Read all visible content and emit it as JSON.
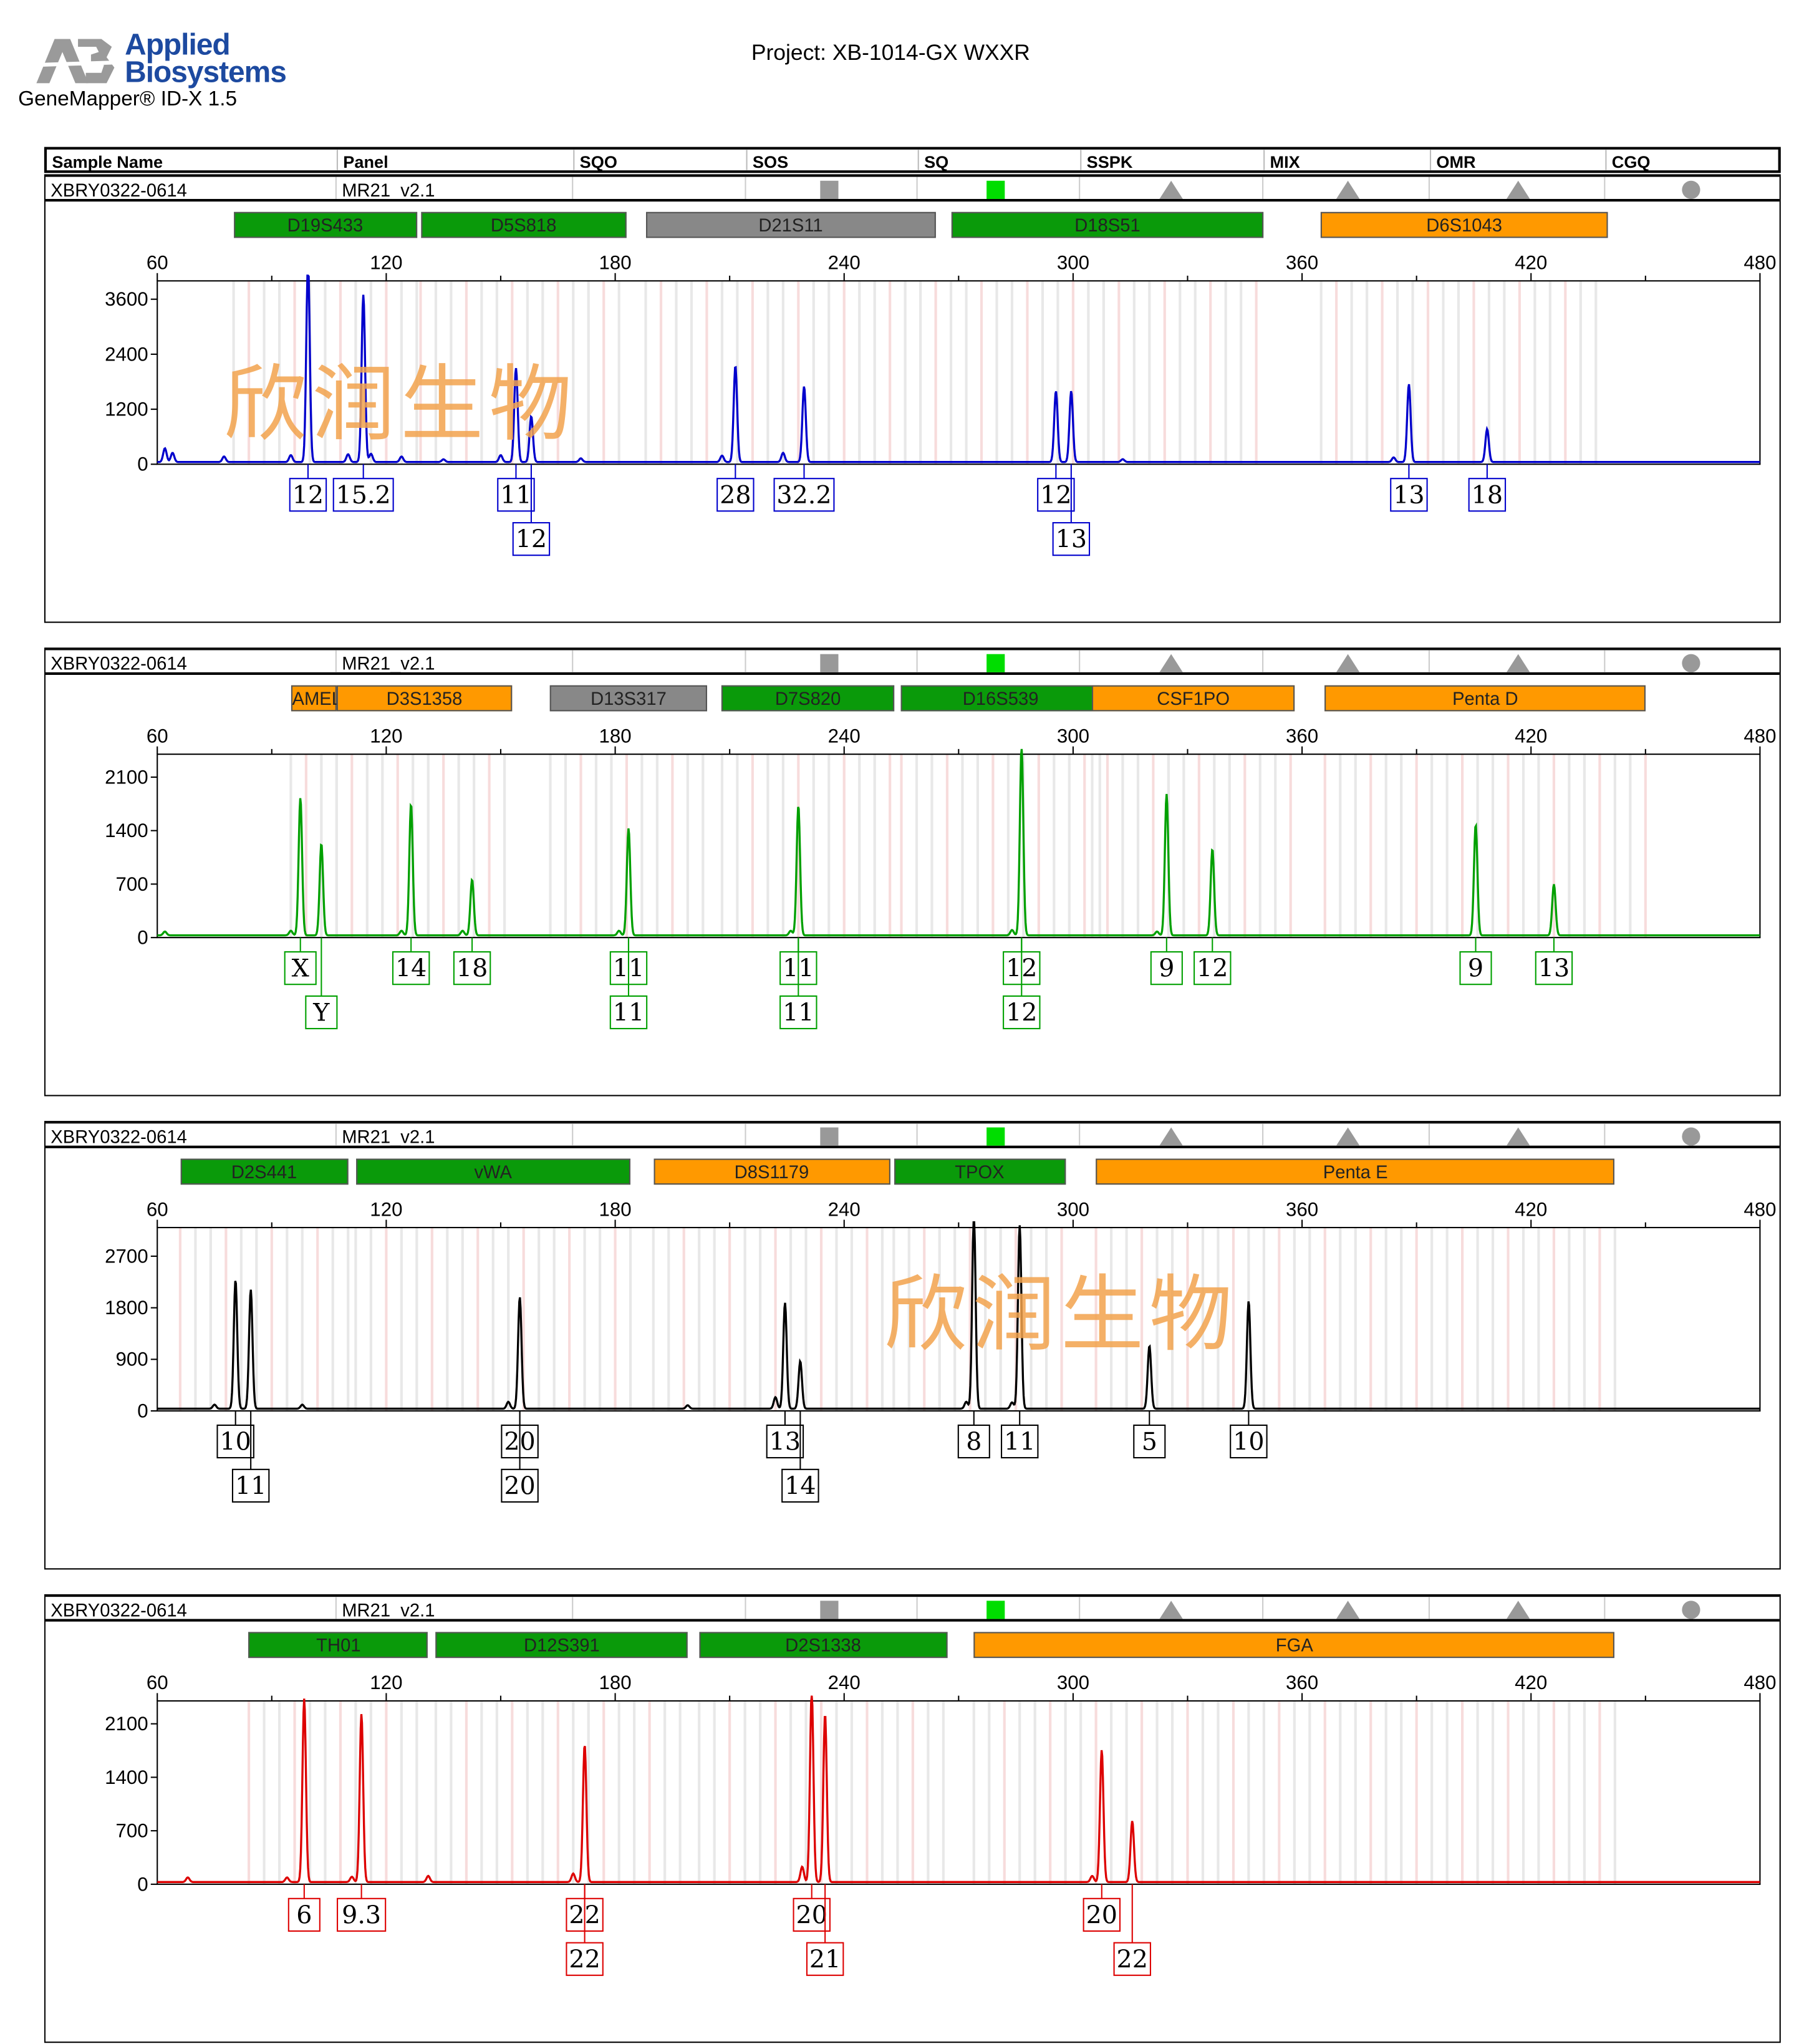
{
  "header": {
    "brand_line1": "Applied",
    "brand_line2": "Biosystems",
    "app_version": "GeneMapper® ID-X  1.5",
    "project": "Project: XB-1014-GX WXXR"
  },
  "columns": [
    "Sample Name",
    "Panel",
    "SQO",
    "SOS",
    "SQ",
    "SSPK",
    "MIX",
    "OMR",
    "CGQ"
  ],
  "watermark": "欣润生物",
  "colors": {
    "blue": "#0000cc",
    "green": "#00a000",
    "black": "#000000",
    "red": "#dd0000",
    "loc_green": "#0a9a0a",
    "loc_orange": "#ff9900",
    "loc_gray": "#888888"
  },
  "quality_icons": [
    "gray-square",
    "green-square",
    "gray-triangle",
    "gray-triangle",
    "gray-triangle",
    "gray-circle"
  ],
  "chart_data": [
    {
      "type": "line",
      "dye": "blue",
      "color": "#0000cc",
      "sample_name": "XBRY0322-0614",
      "panel": "MR21_v2.1",
      "xlim": [
        60,
        480
      ],
      "xticks": [
        60,
        120,
        180,
        240,
        300,
        360,
        420,
        480
      ],
      "ylim": [
        0,
        4000
      ],
      "yticks": [
        0,
        1200,
        2400,
        3600
      ],
      "loci": [
        {
          "name": "D19S433",
          "start": 80,
          "end": 128,
          "color": "green"
        },
        {
          "name": "D5S818",
          "start": 129,
          "end": 183,
          "color": "green"
        },
        {
          "name": "D21S11",
          "start": 188,
          "end": 264,
          "color": "gray"
        },
        {
          "name": "D18S51",
          "start": 268,
          "end": 350,
          "color": "green"
        },
        {
          "name": "D6S1043",
          "start": 365,
          "end": 440,
          "color": "orange"
        }
      ],
      "peaks": [
        {
          "x": 99.5,
          "y": 4400,
          "allele": "12",
          "row": 0
        },
        {
          "x": 114,
          "y": 3650,
          "allele": "15.2",
          "row": 0
        },
        {
          "x": 154,
          "y": 2050,
          "allele": "11",
          "row": 0
        },
        {
          "x": 158,
          "y": 1000,
          "allele": "12",
          "row": 1
        },
        {
          "x": 211.5,
          "y": 2100,
          "allele": "28",
          "row": 0
        },
        {
          "x": 229.5,
          "y": 1650,
          "allele": "32.2",
          "row": 0
        },
        {
          "x": 295.5,
          "y": 1550,
          "allele": "12",
          "row": 0
        },
        {
          "x": 299.5,
          "y": 1550,
          "allele": "13",
          "row": 1
        },
        {
          "x": 388,
          "y": 1700,
          "allele": "13",
          "row": 0
        },
        {
          "x": 408.5,
          "y": 720,
          "allele": "18",
          "row": 0
        }
      ],
      "small_peaks": [
        [
          62,
          300
        ],
        [
          64,
          200
        ],
        [
          77.5,
          120
        ],
        [
          95,
          150
        ],
        [
          110,
          170
        ],
        [
          116,
          180
        ],
        [
          124,
          120
        ],
        [
          135,
          60
        ],
        [
          150,
          150
        ],
        [
          171,
          80
        ],
        [
          208,
          140
        ],
        [
          224,
          200
        ],
        [
          313,
          60
        ],
        [
          384,
          100
        ]
      ]
    },
    {
      "type": "line",
      "dye": "green",
      "color": "#00a000",
      "sample_name": "XBRY0322-0614",
      "panel": "MR21_v2.1",
      "xlim": [
        60,
        480
      ],
      "xticks": [
        60,
        120,
        180,
        240,
        300,
        360,
        420,
        480
      ],
      "ylim": [
        0,
        2400
      ],
      "yticks": [
        0,
        700,
        1400,
        2100
      ],
      "loci": [
        {
          "name": "AMEL",
          "start": 95,
          "end": 107,
          "color": "orange"
        },
        {
          "name": "D3S1358",
          "start": 107,
          "end": 153,
          "color": "orange"
        },
        {
          "name": "D13S317",
          "start": 163,
          "end": 204,
          "color": "gray"
        },
        {
          "name": "D7S820",
          "start": 208,
          "end": 253,
          "color": "green"
        },
        {
          "name": "D16S539",
          "start": 255,
          "end": 307,
          "color": "green"
        },
        {
          "name": "CSF1PO",
          "start": 305,
          "end": 358,
          "color": "orange"
        },
        {
          "name": "Penta D",
          "start": 366,
          "end": 450,
          "color": "orange"
        }
      ],
      "peaks": [
        {
          "x": 97.5,
          "y": 1800,
          "allele": "X",
          "row": 0
        },
        {
          "x": 103,
          "y": 1200,
          "allele": "Y",
          "row": 1
        },
        {
          "x": 126.5,
          "y": 1720,
          "allele": "14",
          "row": 0
        },
        {
          "x": 142.5,
          "y": 730,
          "allele": "18",
          "row": 0
        },
        {
          "x": 183.5,
          "y": 1400,
          "allele": "11",
          "row": 0
        },
        {
          "x": 183.5,
          "y": 1400,
          "allele": "11",
          "row": 1
        },
        {
          "x": 228,
          "y": 1700,
          "allele": "11",
          "row": 0
        },
        {
          "x": 228,
          "y": 1700,
          "allele": "11",
          "row": 1
        },
        {
          "x": 286.5,
          "y": 2480,
          "allele": "12",
          "row": 0
        },
        {
          "x": 286.5,
          "y": 2480,
          "allele": "12",
          "row": 1
        },
        {
          "x": 324.5,
          "y": 1850,
          "allele": "9",
          "row": 0
        },
        {
          "x": 336.5,
          "y": 1130,
          "allele": "12",
          "row": 0
        },
        {
          "x": 405.5,
          "y": 1450,
          "allele": "9",
          "row": 0
        },
        {
          "x": 426,
          "y": 670,
          "allele": "13",
          "row": 0
        }
      ],
      "small_peaks": [
        [
          62,
          50
        ],
        [
          95,
          60
        ],
        [
          124,
          60
        ],
        [
          140,
          60
        ],
        [
          181,
          60
        ],
        [
          226,
          60
        ],
        [
          284,
          70
        ],
        [
          322,
          50
        ]
      ]
    },
    {
      "type": "line",
      "dye": "black",
      "color": "#000000",
      "sample_name": "XBRY0322-0614",
      "panel": "MR21_v2.1",
      "xlim": [
        60,
        480
      ],
      "xticks": [
        60,
        120,
        180,
        240,
        300,
        360,
        420,
        480
      ],
      "ylim": [
        0,
        3200
      ],
      "yticks": [
        0,
        900,
        1800,
        2700
      ],
      "loci": [
        {
          "name": "D2S441",
          "start": 66,
          "end": 110,
          "color": "green"
        },
        {
          "name": "vWA",
          "start": 112,
          "end": 184,
          "color": "green"
        },
        {
          "name": "D8S1179",
          "start": 190,
          "end": 252,
          "color": "orange"
        },
        {
          "name": "TPOX",
          "start": 253,
          "end": 298,
          "color": "green"
        },
        {
          "name": "Penta E",
          "start": 306,
          "end": 442,
          "color": "orange"
        }
      ],
      "peaks": [
        {
          "x": 80.5,
          "y": 2250,
          "allele": "10",
          "row": 0
        },
        {
          "x": 84.5,
          "y": 2080,
          "allele": "11",
          "row": 1
        },
        {
          "x": 155,
          "y": 1950,
          "allele": "20",
          "row": 0
        },
        {
          "x": 155,
          "y": 1950,
          "allele": "20",
          "row": 1
        },
        {
          "x": 224.5,
          "y": 1850,
          "allele": "13",
          "row": 0
        },
        {
          "x": 228.5,
          "y": 830,
          "allele": "14",
          "row": 1
        },
        {
          "x": 274,
          "y": 3400,
          "allele": "8",
          "row": 0
        },
        {
          "x": 286,
          "y": 3200,
          "allele": "11",
          "row": 0
        },
        {
          "x": 320,
          "y": 1100,
          "allele": "5",
          "row": 0
        },
        {
          "x": 346,
          "y": 1880,
          "allele": "10",
          "row": 0
        }
      ],
      "small_peaks": [
        [
          75,
          70
        ],
        [
          98,
          70
        ],
        [
          152,
          120
        ],
        [
          199,
          60
        ],
        [
          222,
          200
        ],
        [
          272,
          120
        ],
        [
          284,
          110
        ]
      ]
    },
    {
      "type": "line",
      "dye": "red",
      "color": "#dd0000",
      "sample_name": "XBRY0322-0614",
      "panel": "MR21_v2.1",
      "xlim": [
        60,
        480
      ],
      "xticks": [
        60,
        120,
        180,
        240,
        300,
        360,
        420,
        480
      ],
      "ylim": [
        0,
        2400
      ],
      "yticks": [
        0,
        700,
        1400,
        2100
      ],
      "loci": [
        {
          "name": "TH01",
          "start": 84,
          "end": 131,
          "color": "green"
        },
        {
          "name": "D12S391",
          "start": 133,
          "end": 199,
          "color": "green"
        },
        {
          "name": "D2S1338",
          "start": 202,
          "end": 267,
          "color": "green"
        },
        {
          "name": "FGA",
          "start": 274,
          "end": 442,
          "color": "orange"
        }
      ],
      "peaks": [
        {
          "x": 98.5,
          "y": 2400,
          "allele": "6",
          "row": 0
        },
        {
          "x": 113.5,
          "y": 2200,
          "allele": "9.3",
          "row": 0
        },
        {
          "x": 172,
          "y": 1800,
          "allele": "22",
          "row": 0
        },
        {
          "x": 172,
          "y": 1800,
          "allele": "22",
          "row": 1
        },
        {
          "x": 231.5,
          "y": 2500,
          "allele": "20",
          "row": 0
        },
        {
          "x": 235,
          "y": 2200,
          "allele": "21",
          "row": 1
        },
        {
          "x": 307.5,
          "y": 1730,
          "allele": "20",
          "row": 0
        },
        {
          "x": 315.5,
          "y": 800,
          "allele": "22",
          "row": 1
        }
      ],
      "small_peaks": [
        [
          68,
          60
        ],
        [
          94,
          60
        ],
        [
          111,
          70
        ],
        [
          131,
          80
        ],
        [
          169,
          110
        ],
        [
          229,
          200
        ],
        [
          305,
          80
        ]
      ]
    }
  ]
}
